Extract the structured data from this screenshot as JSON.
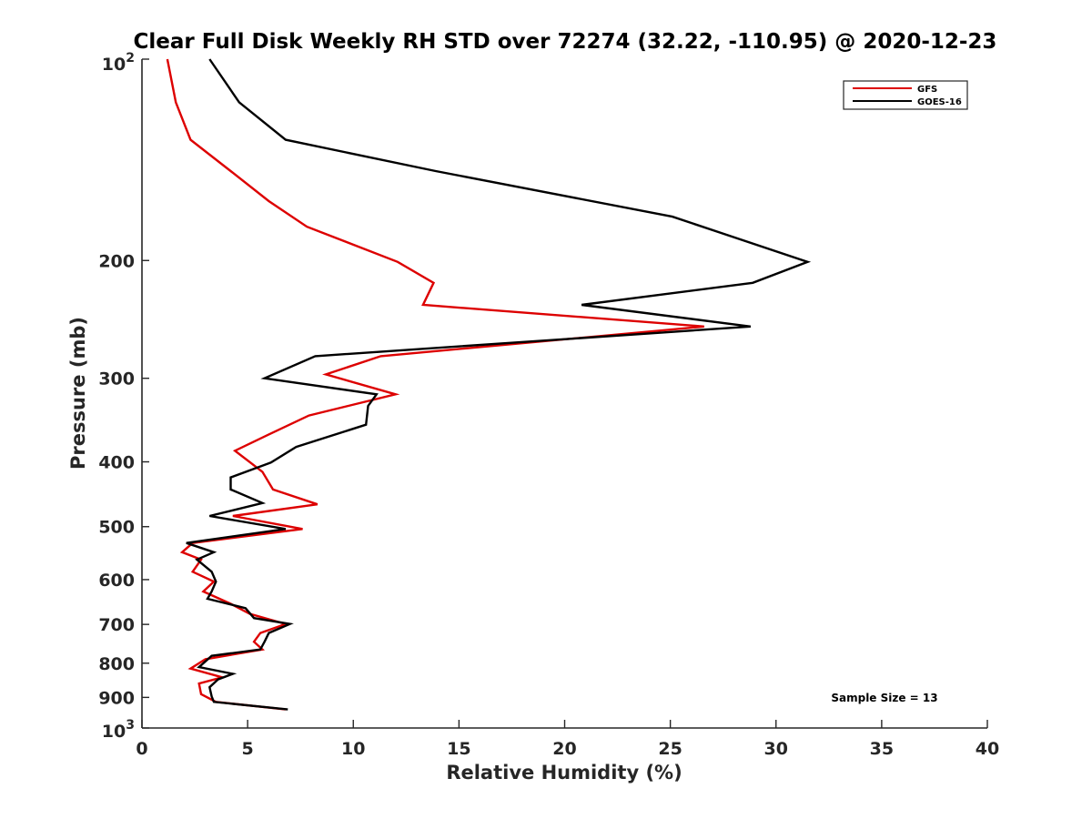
{
  "chart_data": {
    "type": "line",
    "title": "Clear Full Disk Weekly RH STD over 72274 (32.22, -110.95) @ 2020-12-23",
    "xlabel": "Relative Humidity (%)",
    "ylabel": "Pressure (mb)",
    "xlim": [
      0,
      40
    ],
    "ylim": [
      100,
      1000
    ],
    "y_scale": "log",
    "y_reversed": true,
    "x_ticks": [
      0,
      5,
      10,
      15,
      20,
      25,
      30,
      35,
      40
    ],
    "x_tick_labels": [
      "0",
      "5",
      "10",
      "15",
      "20",
      "25",
      "30",
      "35",
      "40"
    ],
    "y_ticks": [
      200,
      300,
      400,
      500,
      600,
      700,
      800,
      900
    ],
    "y_tick_labels": [
      "200",
      "300",
      "400",
      "500",
      "600",
      "700",
      "800",
      "900"
    ],
    "y_top_label": {
      "base": "10",
      "exp": "2"
    },
    "y_bottom_label": {
      "base": "10",
      "exp": "3"
    },
    "legend_position": "top-right",
    "grid": false,
    "annotation": "Sample Size = 13",
    "series": [
      {
        "name": "GFS",
        "color": "#dd0000",
        "points": [
          [
            1.2,
            100
          ],
          [
            1.6,
            116
          ],
          [
            2.3,
            132
          ],
          [
            4.2,
            147
          ],
          [
            6.0,
            163
          ],
          [
            7.8,
            178
          ],
          [
            12.1,
            201
          ],
          [
            13.8,
            216
          ],
          [
            13.3,
            233
          ],
          [
            26.6,
            251
          ],
          [
            11.3,
            278
          ],
          [
            8.7,
            296
          ],
          [
            12.0,
            317
          ],
          [
            7.9,
            341
          ],
          [
            6.0,
            364
          ],
          [
            4.4,
            385
          ],
          [
            5.7,
            414
          ],
          [
            6.2,
            440
          ],
          [
            8.3,
            463
          ],
          [
            4.3,
            482
          ],
          [
            7.6,
            504
          ],
          [
            2.4,
            529
          ],
          [
            1.9,
            546
          ],
          [
            2.8,
            560
          ],
          [
            2.4,
            584
          ],
          [
            3.4,
            604
          ],
          [
            2.9,
            625
          ],
          [
            4.2,
            652
          ],
          [
            5.1,
            675
          ],
          [
            6.8,
            699
          ],
          [
            5.6,
            721
          ],
          [
            5.3,
            743
          ],
          [
            5.7,
            763
          ],
          [
            3.0,
            789
          ],
          [
            2.3,
            815
          ],
          [
            3.8,
            840
          ],
          [
            2.7,
            858
          ],
          [
            2.8,
            890
          ],
          [
            3.5,
            914
          ],
          [
            6.8,
            938
          ]
        ]
      },
      {
        "name": "GOES-16",
        "color": "#000000",
        "points": [
          [
            3.2,
            100
          ],
          [
            4.6,
            116
          ],
          [
            6.8,
            132
          ],
          [
            13.9,
            147
          ],
          [
            25.1,
            172
          ],
          [
            31.5,
            201
          ],
          [
            28.9,
            216
          ],
          [
            20.8,
            233
          ],
          [
            28.8,
            251
          ],
          [
            8.2,
            278
          ],
          [
            5.8,
            300
          ],
          [
            11.1,
            317
          ],
          [
            10.7,
            330
          ],
          [
            10.6,
            352
          ],
          [
            7.3,
            380
          ],
          [
            6.1,
            401
          ],
          [
            4.2,
            422
          ],
          [
            4.2,
            440
          ],
          [
            5.7,
            461
          ],
          [
            3.2,
            482
          ],
          [
            6.8,
            504
          ],
          [
            2.1,
            529
          ],
          [
            3.4,
            546
          ],
          [
            2.6,
            560
          ],
          [
            3.3,
            584
          ],
          [
            3.5,
            604
          ],
          [
            3.3,
            625
          ],
          [
            3.1,
            641
          ],
          [
            4.9,
            662
          ],
          [
            5.3,
            685
          ],
          [
            7.0,
            699
          ],
          [
            6.0,
            721
          ],
          [
            5.8,
            743
          ],
          [
            5.6,
            763
          ],
          [
            3.3,
            780
          ],
          [
            2.7,
            811
          ],
          [
            4.3,
            830
          ],
          [
            3.6,
            846
          ],
          [
            3.2,
            869
          ],
          [
            3.3,
            897
          ],
          [
            3.4,
            914
          ],
          [
            6.9,
            938
          ]
        ]
      }
    ]
  }
}
